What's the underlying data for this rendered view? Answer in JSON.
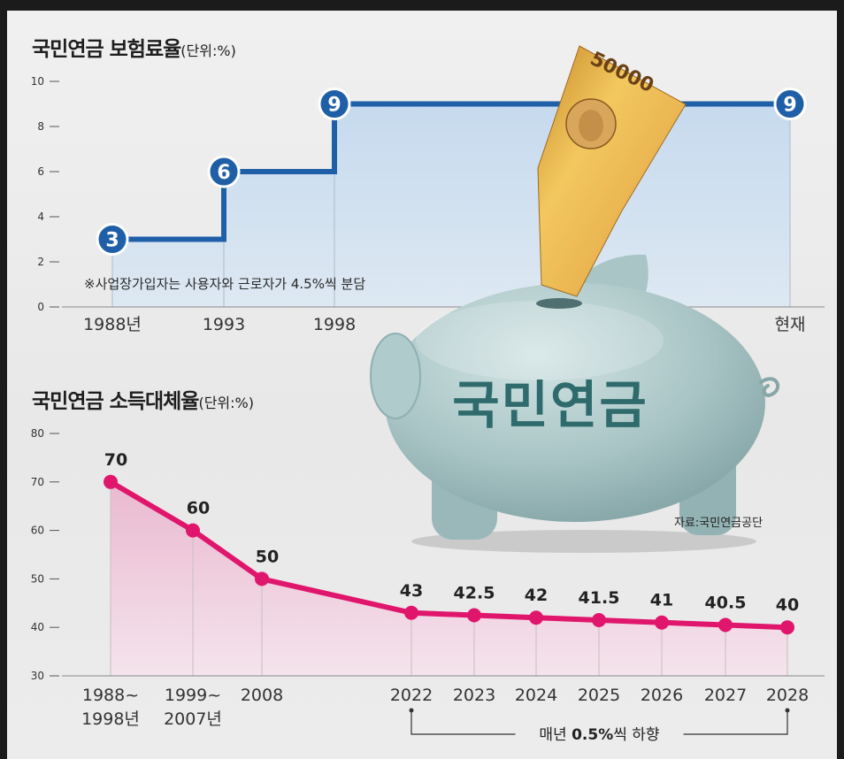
{
  "chart_data": [
    {
      "type": "line",
      "style": "step",
      "title": "국민연금 보험료율",
      "unit": "(단위:%)",
      "categories": [
        "1988년",
        "1993",
        "1998",
        "현재"
      ],
      "values": [
        3,
        6,
        9,
        9
      ],
      "value_labels": [
        "3",
        "6",
        "9",
        "9"
      ],
      "ylim": [
        0,
        10
      ],
      "yticks": [
        10,
        8,
        6,
        4,
        2,
        0
      ],
      "note": "※사업장가입자는 사용자와 근로자가 4.5%씩 분담",
      "grid": false
    },
    {
      "type": "line",
      "title": "국민연금 소득대체율",
      "unit": "(단위:%)",
      "categories": [
        [
          "1988~",
          "1998년"
        ],
        [
          "1999~",
          "2007년"
        ],
        [
          "2008"
        ],
        [
          "2022"
        ],
        [
          "2023"
        ],
        [
          "2024"
        ],
        [
          "2025"
        ],
        [
          "2026"
        ],
        [
          "2027"
        ],
        [
          "2028"
        ]
      ],
      "values": [
        70,
        60,
        50,
        43,
        42.5,
        42,
        41.5,
        41,
        40.5,
        40
      ],
      "value_labels": [
        "70",
        "60",
        "50",
        "43",
        "42.5",
        "42",
        "41.5",
        "41",
        "40.5",
        "40"
      ],
      "ylim": [
        30,
        80
      ],
      "yticks": [
        80,
        70,
        60,
        50,
        40,
        30
      ],
      "annotation": {
        "prefix": "매년 ",
        "bold": "0.5%",
        "suffix": "씩 하향"
      },
      "grid": false
    }
  ],
  "source": "자료:국민연금공단",
  "illustration": {
    "piggy_label": "국민연금",
    "banknote_text": "50000"
  },
  "colors": {
    "contribution_line": "#1f5fa8",
    "contribution_fill_top": "#c6daee",
    "contribution_fill_bottom": "#dde8f2",
    "replacement_line": "#e0166d",
    "replacement_fill_top": "#eab9d0",
    "replacement_fill_bottom": "#f4e4ec",
    "piggy_label": "#2f6b6c",
    "piggy_body": "#a5c1c2"
  }
}
